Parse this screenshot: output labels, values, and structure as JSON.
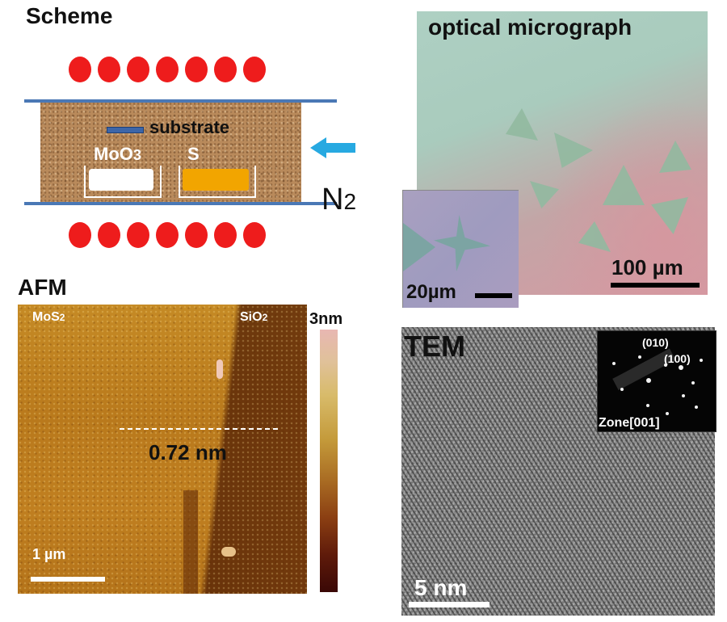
{
  "scheme": {
    "title": "Scheme",
    "substrate_label": "substrate",
    "moo3_label": "MoO",
    "moo3_subscript": "3",
    "s_label": "S",
    "gas_label": "N",
    "gas_subscript": "2",
    "colors": {
      "heater_dot": "#ee1c1c",
      "tube_line": "#4a78b5",
      "arrow": "#27a9e1",
      "sulfur": "#f2a500"
    }
  },
  "optical": {
    "title": "optical micrograph",
    "scalebar_label": "100 µm",
    "inset_scalebar_label": "20µm"
  },
  "afm": {
    "title": "AFM",
    "region_left": "MoS",
    "region_left_sub": "2",
    "region_right": "SiO",
    "region_right_sub": "2",
    "height_label": "0.72 nm",
    "scalebar_label": "1 µm",
    "colorbar_max_label": "3nm"
  },
  "tem": {
    "title": "TEM",
    "scalebar_label": "5 nm",
    "saed_labels": [
      "(010)",
      "(100)"
    ],
    "zone_label": "Zone[001]"
  }
}
